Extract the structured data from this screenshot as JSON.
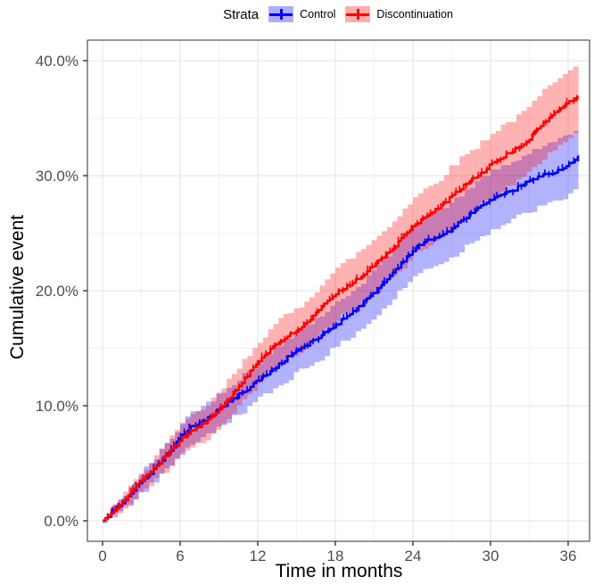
{
  "legend": {
    "title": "Strata",
    "items": [
      {
        "label": "Control",
        "color": "#0000FF",
        "fill": "#9e9ef0"
      },
      {
        "label": "Discontinuation",
        "color": "#FF0000",
        "fill": "#f59e9e"
      }
    ]
  },
  "axes": {
    "x": {
      "title": "Time in months",
      "tick_labels": [
        "0",
        "6",
        "12",
        "18",
        "24",
        "30",
        "36"
      ],
      "tick_values": [
        0,
        6,
        12,
        18,
        24,
        30,
        36
      ],
      "minor_ticks": [
        3,
        9,
        15,
        21,
        27,
        33
      ],
      "range": [
        -1.2,
        37.8
      ]
    },
    "y": {
      "title": "Cumulative event",
      "tick_labels": [
        "0.0%",
        "10.0%",
        "20.0%",
        "30.0%",
        "40.0%"
      ],
      "tick_values": [
        0,
        10,
        20,
        30,
        40
      ],
      "minor_ticks": [
        5,
        15,
        25,
        35
      ],
      "range": [
        -1.8,
        41.8
      ]
    }
  },
  "style": {
    "panel_background": "#ffffff",
    "panel_border": "#2e2e2e",
    "grid_major": "#e3e3e3",
    "grid_minor": "#f2f2f2",
    "tick_color": "#333333",
    "band_opacity": 0.3
  },
  "chart_data": {
    "type": "line",
    "subtype": "cumulative-incidence-step-curves-with-ci-bands-and-censor-marks",
    "title": "",
    "xlabel": "Time in months",
    "ylabel": "Cumulative event",
    "x_unit": "months",
    "y_unit": "percent",
    "legend_position": "top",
    "grid": true,
    "x": [
      0,
      1,
      2,
      3,
      4,
      5,
      6,
      7,
      8,
      9,
      10,
      11,
      12,
      13,
      14,
      15,
      16,
      17,
      18,
      19,
      20,
      21,
      22,
      23,
      24,
      25,
      26,
      27,
      28,
      29,
      30,
      31,
      32,
      33,
      34,
      35,
      36,
      36.8
    ],
    "series": [
      {
        "name": "Control",
        "color": "#0000FF",
        "values": [
          0,
          1.0,
          2.2,
          3.4,
          4.5,
          5.8,
          7.2,
          8.3,
          8.8,
          9.7,
          10.5,
          11.3,
          12.2,
          13.0,
          13.9,
          14.8,
          15.4,
          16.2,
          17.0,
          17.9,
          18.8,
          19.8,
          21.0,
          22.3,
          23.5,
          24.3,
          24.7,
          25.3,
          26.3,
          27.2,
          27.8,
          28.3,
          28.9,
          29.5,
          30.0,
          30.3,
          31.0,
          31.5
        ],
        "upper": [
          0,
          1.5,
          2.9,
          4.3,
          5.5,
          6.9,
          8.5,
          9.7,
          10.2,
          11.2,
          12.0,
          12.9,
          13.8,
          14.7,
          15.7,
          16.6,
          17.2,
          18.1,
          18.9,
          19.9,
          20.8,
          21.9,
          23.2,
          24.5,
          25.8,
          26.6,
          27.0,
          27.7,
          28.7,
          29.7,
          30.3,
          30.8,
          31.4,
          32.1,
          32.6,
          32.9,
          33.6,
          34.1
        ],
        "lower": [
          0,
          0.5,
          1.5,
          2.5,
          3.5,
          4.7,
          5.9,
          6.9,
          7.4,
          8.2,
          9.0,
          9.7,
          10.6,
          11.3,
          12.1,
          13.0,
          13.6,
          14.3,
          15.1,
          15.9,
          16.8,
          17.7,
          18.8,
          20.1,
          21.2,
          22.0,
          22.4,
          22.9,
          23.9,
          24.7,
          25.3,
          25.8,
          26.4,
          26.9,
          27.4,
          27.7,
          28.4,
          28.9
        ]
      },
      {
        "name": "Discontinuation",
        "color": "#FF0000",
        "values": [
          0,
          1.0,
          2.2,
          3.5,
          4.6,
          5.7,
          7.0,
          7.9,
          8.5,
          9.7,
          11.0,
          12.4,
          13.8,
          14.9,
          15.8,
          16.5,
          17.5,
          18.6,
          19.7,
          20.5,
          21.3,
          22.2,
          23.2,
          24.4,
          25.6,
          26.4,
          27.2,
          28.2,
          29.2,
          30.0,
          30.9,
          31.7,
          32.3,
          33.2,
          34.5,
          35.5,
          36.4,
          36.8
        ],
        "upper": [
          0,
          1.5,
          2.9,
          4.4,
          5.7,
          6.9,
          8.3,
          9.3,
          10.0,
          11.3,
          12.7,
          14.2,
          15.7,
          16.8,
          17.8,
          18.5,
          19.6,
          20.8,
          21.9,
          22.8,
          23.6,
          24.6,
          25.6,
          26.9,
          28.1,
          29.0,
          29.8,
          30.9,
          31.9,
          32.7,
          33.7,
          34.5,
          35.1,
          36.1,
          37.4,
          38.5,
          39.4,
          39.8
        ],
        "lower": [
          0,
          0.5,
          1.5,
          2.6,
          3.5,
          4.5,
          5.7,
          6.5,
          7.0,
          8.1,
          9.3,
          10.6,
          11.9,
          13.0,
          13.8,
          14.5,
          15.4,
          16.4,
          17.5,
          18.2,
          19.0,
          19.8,
          20.8,
          21.9,
          23.1,
          23.8,
          24.6,
          25.5,
          26.5,
          27.3,
          28.1,
          28.9,
          29.5,
          30.3,
          31.6,
          32.5,
          33.4,
          33.8
        ]
      }
    ]
  }
}
